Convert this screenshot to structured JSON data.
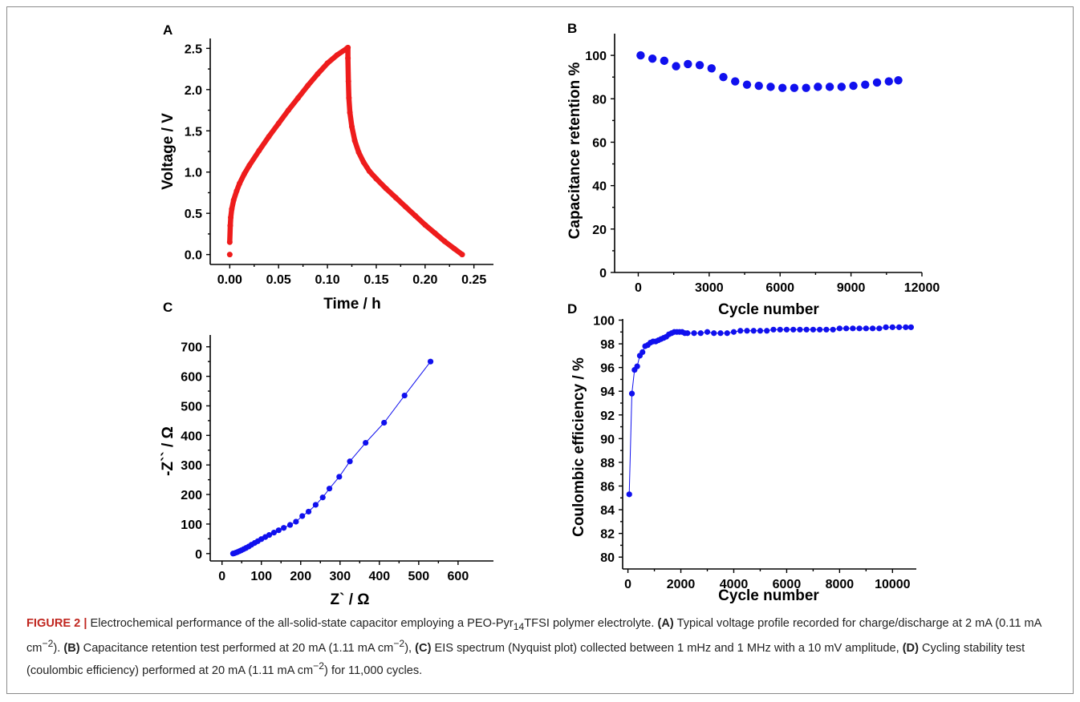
{
  "caption": {
    "label": "FIGURE 2 |",
    "t1": " Electrochemical performance of the all-solid-state capacitor employing a PEO-Pyr",
    "sub1": "14",
    "t2": "TFSI polymer electrolyte. ",
    "bA": "(A)",
    "t3": " Typical voltage profile recorded for charge/discharge at 2 mA (0.11 mA cm",
    "sup1": "−2",
    "t4": "). ",
    "bB": "(B)",
    "t5": " Capacitance retention test performed at 20 mA (1.11 mA cm",
    "sup2": "−2",
    "t6": "), ",
    "bC": "(C)",
    "t7": " EIS spectrum (Nyquist plot) collected between 1 mHz and 1 MHz with a 10 mV amplitude, ",
    "bD": "(D)",
    "t8": " Cycling stability test (coulombic efficiency) performed at 20 mA (1.11 mA cm",
    "sup3": "−2",
    "t9": ") for 11,000 cycles."
  },
  "colors": {
    "red": "#ee1c1c",
    "blue": "#1010ee",
    "axis": "#000000",
    "caption_label": "#c0261f"
  },
  "chart_data": [
    {
      "id": "A",
      "panel_label": "A",
      "type": "scatter",
      "xlabel": "Time / h",
      "ylabel": "Voltage / V",
      "xlim": [
        -0.02,
        0.27
      ],
      "ylim": [
        -0.12,
        2.62
      ],
      "xticks": [
        0.0,
        0.05,
        0.1,
        0.15,
        0.2,
        0.25
      ],
      "yticks": [
        0.0,
        0.5,
        1.0,
        1.5,
        2.0,
        2.5
      ],
      "tick_decimals_x": 2,
      "tick_decimals_y": 1,
      "series": [
        {
          "color": "#ee1c1c",
          "marker": "dense",
          "x": [
            0.0,
            0.0,
            0.0005,
            0.001,
            0.002,
            0.004,
            0.007,
            0.01,
            0.015,
            0.02,
            0.03,
            0.04,
            0.05,
            0.06,
            0.07,
            0.08,
            0.09,
            0.1,
            0.11,
            0.12,
            0.121,
            0.121,
            0.1215,
            0.122,
            0.123,
            0.125,
            0.128,
            0.132,
            0.137,
            0.143,
            0.15,
            0.16,
            0.17,
            0.18,
            0.19,
            0.2,
            0.21,
            0.22,
            0.23,
            0.238
          ],
          "y": [
            0.0,
            0.15,
            0.35,
            0.45,
            0.55,
            0.66,
            0.77,
            0.86,
            0.98,
            1.08,
            1.26,
            1.43,
            1.59,
            1.75,
            1.9,
            2.05,
            2.19,
            2.32,
            2.42,
            2.5,
            2.51,
            2.38,
            2.1,
            1.9,
            1.72,
            1.55,
            1.38,
            1.24,
            1.12,
            1.01,
            0.92,
            0.8,
            0.69,
            0.58,
            0.47,
            0.36,
            0.26,
            0.16,
            0.07,
            0.0
          ]
        }
      ]
    },
    {
      "id": "B",
      "panel_label": "B",
      "type": "scatter",
      "xlabel": "Cycle number",
      "ylabel": "Capacitance retention %",
      "xlim": [
        -1000,
        12000
      ],
      "ylim": [
        0,
        110
      ],
      "xticks": [
        0,
        3000,
        6000,
        9000,
        12000
      ],
      "yticks": [
        0,
        20,
        40,
        60,
        80,
        100
      ],
      "tick_decimals_x": 0,
      "tick_decimals_y": 0,
      "series": [
        {
          "color": "#1010ee",
          "marker": "dot",
          "x": [
            100,
            600,
            1100,
            1600,
            2100,
            2600,
            3100,
            3600,
            4100,
            4600,
            5100,
            5600,
            6100,
            6600,
            7100,
            7600,
            8100,
            8600,
            9100,
            9600,
            10100,
            10600,
            11000
          ],
          "y": [
            100,
            98.5,
            97.5,
            95,
            96,
            95.5,
            94,
            90,
            88,
            86.5,
            86,
            85.5,
            85,
            85,
            85,
            85.5,
            85.5,
            85.5,
            86,
            86.5,
            87.5,
            88,
            88.5
          ]
        }
      ]
    },
    {
      "id": "C",
      "panel_label": "C",
      "type": "line",
      "xlabel": "Z` / Ω",
      "ylabel": "-Z`` / Ω",
      "xlim": [
        -30,
        690
      ],
      "ylim": [
        -25,
        740
      ],
      "xticks": [
        0,
        100,
        200,
        300,
        400,
        500,
        600
      ],
      "yticks": [
        0,
        100,
        200,
        300,
        400,
        500,
        600,
        700
      ],
      "tick_decimals_x": 0,
      "tick_decimals_y": 0,
      "series": [
        {
          "color": "#1010ee",
          "marker": "dot",
          "x": [
            28,
            31,
            35,
            39,
            44,
            49,
            55,
            61,
            68,
            75,
            83,
            91,
            100,
            110,
            120,
            132,
            144,
            157,
            173,
            188,
            204,
            220,
            238,
            256,
            273,
            298,
            325,
            365,
            412,
            464,
            530
          ],
          "y": [
            0,
            1,
            3,
            5,
            8,
            11,
            15,
            19,
            24,
            30,
            36,
            42,
            49,
            56,
            63,
            71,
            79,
            87,
            97,
            108,
            127,
            142,
            165,
            190,
            220,
            260,
            312,
            375,
            443,
            535,
            650
          ]
        }
      ]
    },
    {
      "id": "D",
      "panel_label": "D",
      "type": "line",
      "xlabel": "Cycle number",
      "ylabel": "Coulombic efficiency / %",
      "xlim": [
        -200,
        10900
      ],
      "ylim": [
        79,
        100.1
      ],
      "xticks": [
        0,
        2000,
        4000,
        6000,
        8000,
        10000
      ],
      "yticks": [
        80,
        82,
        84,
        86,
        88,
        90,
        92,
        94,
        96,
        98,
        100
      ],
      "tick_decimals_x": 0,
      "tick_decimals_y": 0,
      "series": [
        {
          "color": "#1010ee",
          "marker": "dot",
          "x": [
            50,
            150,
            250,
            350,
            450,
            550,
            650,
            750,
            850,
            950,
            1050,
            1150,
            1250,
            1350,
            1450,
            1550,
            1650,
            1750,
            1850,
            1950,
            2050,
            2150,
            2250,
            2500,
            2750,
            3000,
            3250,
            3500,
            3750,
            4000,
            4250,
            4500,
            4750,
            5000,
            5250,
            5500,
            5750,
            6000,
            6250,
            6500,
            6750,
            7000,
            7250,
            7500,
            7750,
            8000,
            8250,
            8500,
            8750,
            9000,
            9250,
            9500,
            9750,
            10000,
            10250,
            10500,
            10700
          ],
          "y": [
            85.3,
            93.8,
            95.8,
            96.1,
            97.0,
            97.3,
            97.8,
            97.9,
            98.1,
            98.2,
            98.2,
            98.3,
            98.4,
            98.5,
            98.6,
            98.8,
            98.9,
            99.0,
            99.0,
            99.0,
            99.0,
            98.9,
            98.9,
            98.9,
            98.9,
            99.0,
            98.9,
            98.9,
            98.9,
            99.0,
            99.1,
            99.1,
            99.1,
            99.1,
            99.1,
            99.2,
            99.2,
            99.2,
            99.2,
            99.2,
            99.2,
            99.2,
            99.2,
            99.2,
            99.2,
            99.3,
            99.3,
            99.3,
            99.3,
            99.3,
            99.3,
            99.3,
            99.4,
            99.4,
            99.4,
            99.4,
            99.4
          ]
        }
      ]
    }
  ]
}
